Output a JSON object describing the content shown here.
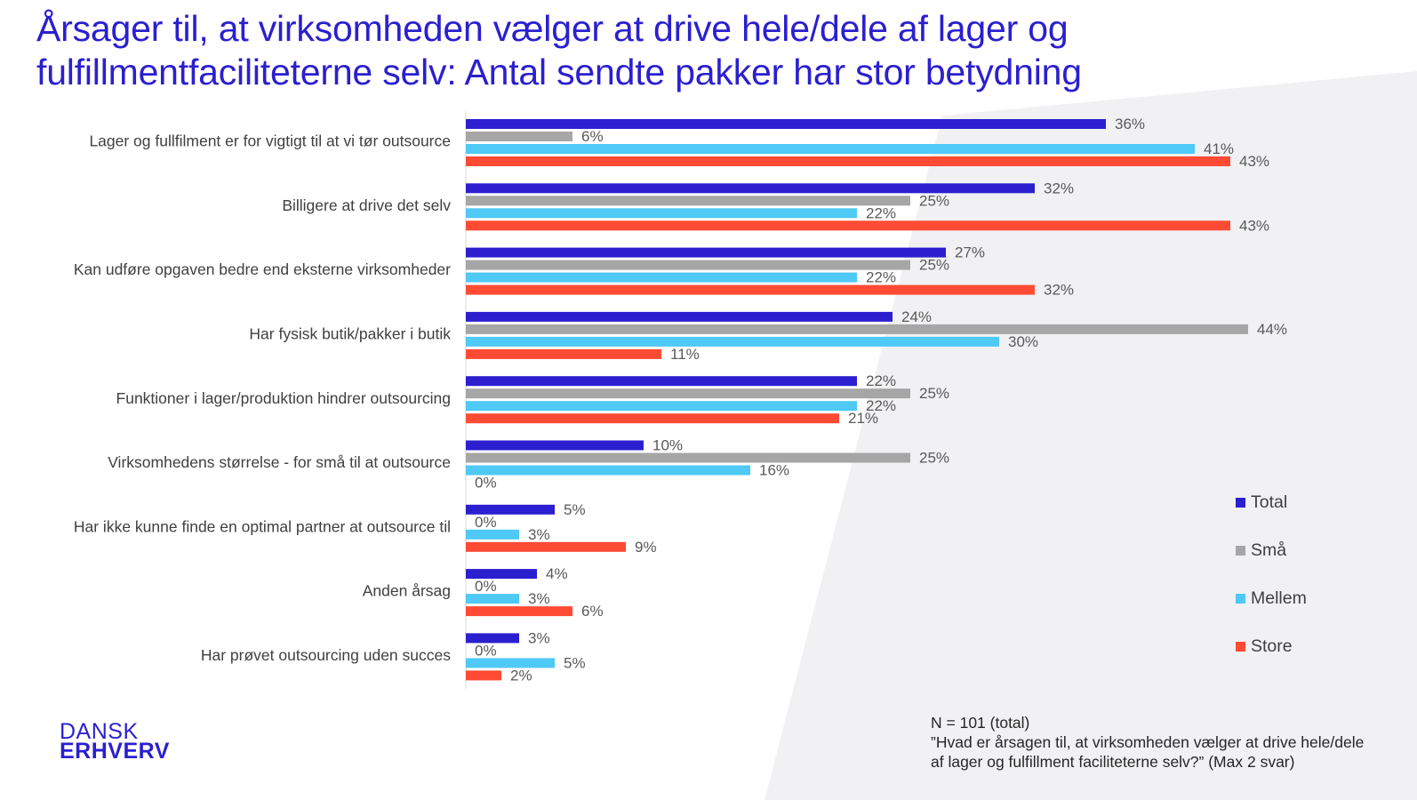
{
  "title_line1": "Årsager til, at virksomheden vælger at drive hele/dele af lager og",
  "title_line2": "fulfillmentfaciliteterne selv: Antal sendte pakker har stor betydning",
  "chart_data": {
    "type": "bar",
    "orientation": "horizontal",
    "categories": [
      "Lager og fullfilment er for vigtigt til at vi tør outsource",
      "Billigere at drive det selv",
      "Kan udføre opgaven bedre end eksterne virksomheder",
      "Har fysisk butik/pakker i butik",
      "Funktioner i lager/produktion hindrer outsourcing",
      "Virksomhedens størrelse - for små til at outsource",
      "Har ikke kunne finde en optimal partner at outsource til",
      "Anden årsag",
      "Har prøvet outsourcing uden succes"
    ],
    "series": [
      {
        "name": "Total",
        "color": "#2b1fcf",
        "values": [
          36,
          32,
          27,
          24,
          22,
          10,
          5,
          4,
          3
        ]
      },
      {
        "name": "Små",
        "color": "#a6a6a6",
        "values": [
          6,
          25,
          25,
          44,
          25,
          25,
          0,
          0,
          0
        ]
      },
      {
        "name": "Mellem",
        "color": "#4fc9f5",
        "values": [
          41,
          22,
          22,
          30,
          22,
          16,
          3,
          3,
          5
        ]
      },
      {
        "name": "Store",
        "color": "#ff4b33",
        "values": [
          43,
          43,
          32,
          11,
          21,
          0,
          9,
          6,
          2
        ]
      }
    ],
    "value_suffix": "%",
    "xlim": [
      0,
      50
    ],
    "grid": false,
    "legend_position": "right"
  },
  "footnote": {
    "line1": "N = 101 (total)",
    "line2": "”Hvad er årsagen til, at virksomheden vælger at drive hele/dele af lager og fulfillment faciliteterne selv?” (Max 2 svar)"
  },
  "logo": {
    "line1": "DANSK",
    "line2": "ERHVERV"
  }
}
